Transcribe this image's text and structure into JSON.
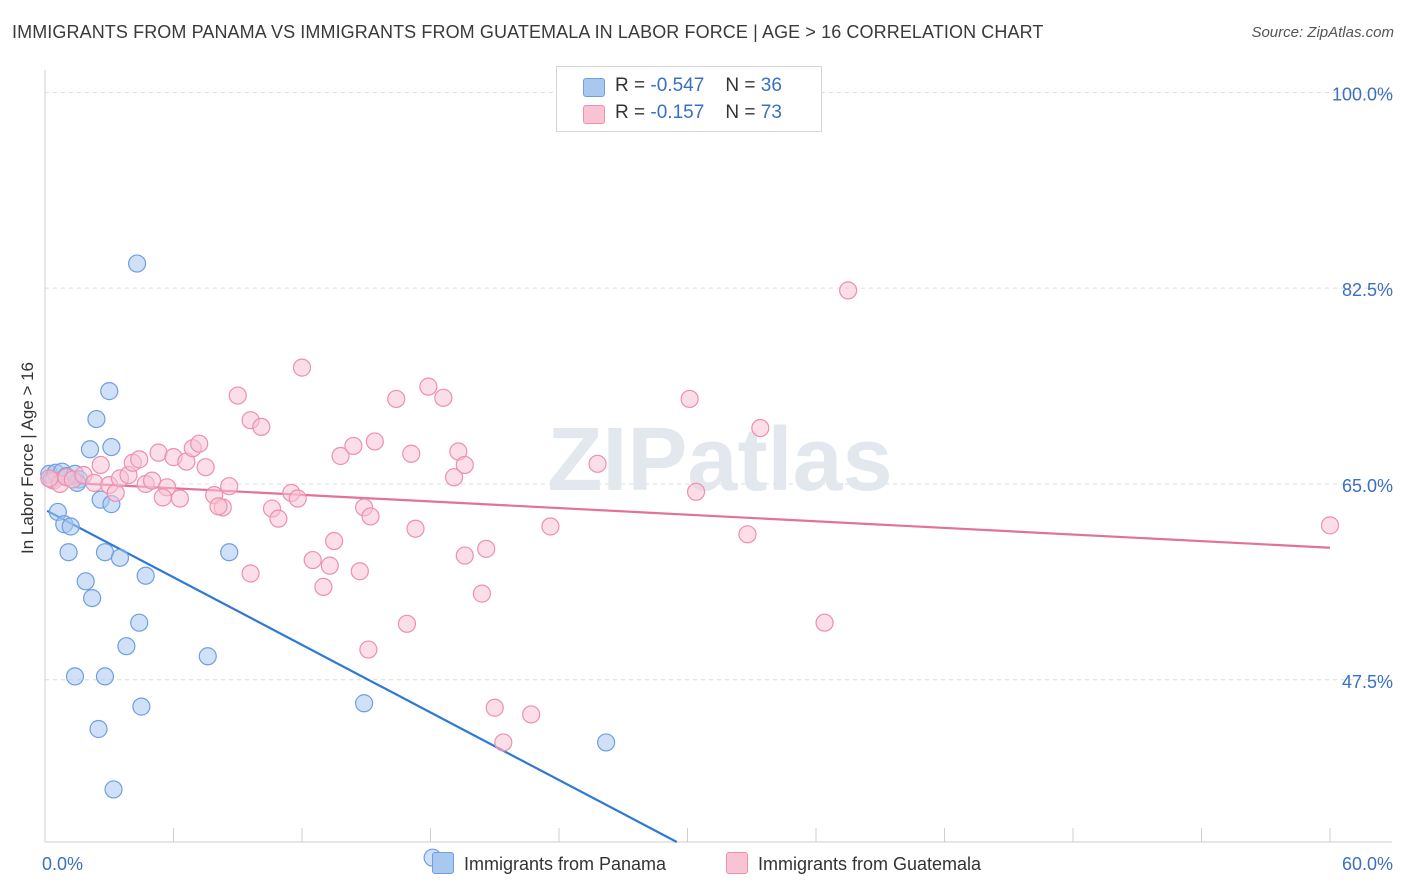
{
  "title": "IMMIGRANTS FROM PANAMA VS IMMIGRANTS FROM GUATEMALA IN LABOR FORCE | AGE > 16 CORRELATION CHART",
  "source": "Source: ZipAtlas.com",
  "legend_top": [
    {
      "r_label": "R =",
      "r_value": "-0.547",
      "n_label": "N =",
      "n_value": "36",
      "color": "#a9c8f0",
      "stroke": "#6f9fe0"
    },
    {
      "r_label": "R =",
      "r_value": "-0.157",
      "n_label": "N =",
      "n_value": "73",
      "color": "#f8c3d3",
      "stroke": "#ee8fae"
    }
  ],
  "legend_bottom": [
    {
      "label": "Immigrants from Panama",
      "color": "#a9c8f0",
      "stroke": "#6f9fe0"
    },
    {
      "label": "Immigrants from Guatemala",
      "color": "#f8c3d3",
      "stroke": "#ee8fae"
    }
  ],
  "chart_data": {
    "type": "scatter",
    "xlabel": "",
    "ylabel": "In Labor Force | Age > 16",
    "xlim": [
      0,
      60
    ],
    "ylim": [
      33,
      102
    ],
    "x_tick_labels": [
      {
        "value": 0,
        "label": "0.0%"
      },
      {
        "value": 60,
        "label": "60.0%"
      }
    ],
    "y_tick_labels": [
      {
        "value": 100,
        "label": "100.0%"
      },
      {
        "value": 82.5,
        "label": "82.5%"
      },
      {
        "value": 65,
        "label": "65.0%"
      },
      {
        "value": 47.5,
        "label": "47.5%"
      }
    ],
    "grid": "horizontal-dashed",
    "watermark": "ZIPatlas",
    "series": [
      {
        "name": "Immigrants from Panama",
        "color": "#6f9fe0",
        "fill": "#a9c8f0",
        "trend": {
          "x": [
            0.1,
            29.5
          ],
          "y": [
            62.6,
            33.0
          ],
          "color": "#2f78d4"
        },
        "points": [
          [
            0.2,
            65.9
          ],
          [
            0.3,
            65.4
          ],
          [
            0.5,
            66.0
          ],
          [
            0.8,
            66.1
          ],
          [
            1.0,
            65.7
          ],
          [
            1.4,
            65.9
          ],
          [
            1.6,
            65.4
          ],
          [
            0.6,
            62.5
          ],
          [
            0.9,
            61.4
          ],
          [
            1.2,
            61.2
          ],
          [
            1.5,
            65.1
          ],
          [
            2.1,
            68.1
          ],
          [
            2.4,
            70.8
          ],
          [
            2.6,
            63.6
          ],
          [
            3.1,
            63.2
          ],
          [
            3.1,
            68.3
          ],
          [
            3.0,
            73.3
          ],
          [
            4.3,
            84.7
          ],
          [
            1.1,
            58.9
          ],
          [
            1.9,
            56.3
          ],
          [
            2.2,
            54.8
          ],
          [
            2.8,
            58.9
          ],
          [
            3.5,
            58.4
          ],
          [
            4.7,
            56.8
          ],
          [
            4.4,
            52.6
          ],
          [
            3.8,
            50.5
          ],
          [
            7.6,
            49.6
          ],
          [
            8.6,
            58.9
          ],
          [
            1.4,
            47.8
          ],
          [
            2.8,
            47.8
          ],
          [
            4.5,
            45.1
          ],
          [
            2.5,
            43.1
          ],
          [
            3.2,
            37.7
          ],
          [
            14.9,
            45.4
          ],
          [
            26.2,
            41.9
          ],
          [
            18.1,
            31.6
          ]
        ]
      },
      {
        "name": "Immigrants from Guatemala",
        "color": "#ee8fae",
        "fill": "#f8c3d3",
        "trend": {
          "x": [
            0.1,
            60.0
          ],
          "y": [
            65.2,
            59.3
          ],
          "color": "#e2729a"
        },
        "points": [
          [
            0.4,
            65.3
          ],
          [
            0.7,
            65.0
          ],
          [
            1.0,
            65.6
          ],
          [
            1.3,
            65.4
          ],
          [
            1.8,
            65.8
          ],
          [
            2.3,
            65.1
          ],
          [
            2.6,
            66.7
          ],
          [
            3.0,
            64.9
          ],
          [
            3.3,
            64.2
          ],
          [
            3.5,
            65.5
          ],
          [
            3.9,
            65.8
          ],
          [
            4.1,
            66.9
          ],
          [
            4.4,
            67.2
          ],
          [
            4.7,
            65.0
          ],
          [
            5.0,
            65.3
          ],
          [
            5.3,
            67.8
          ],
          [
            5.7,
            64.7
          ],
          [
            6.0,
            67.4
          ],
          [
            6.3,
            63.7
          ],
          [
            6.6,
            67.0
          ],
          [
            6.9,
            68.2
          ],
          [
            7.2,
            68.6
          ],
          [
            7.5,
            66.5
          ],
          [
            7.9,
            64.0
          ],
          [
            8.3,
            62.9
          ],
          [
            8.6,
            64.8
          ],
          [
            9.0,
            72.9
          ],
          [
            9.6,
            70.7
          ],
          [
            10.1,
            70.1
          ],
          [
            10.6,
            62.8
          ],
          [
            10.9,
            61.9
          ],
          [
            9.6,
            57.0
          ],
          [
            11.5,
            64.2
          ],
          [
            11.8,
            63.7
          ],
          [
            12.0,
            75.4
          ],
          [
            12.5,
            58.2
          ],
          [
            13.0,
            55.8
          ],
          [
            13.3,
            57.7
          ],
          [
            13.5,
            59.9
          ],
          [
            13.8,
            67.5
          ],
          [
            14.4,
            68.4
          ],
          [
            14.7,
            57.2
          ],
          [
            14.9,
            62.9
          ],
          [
            15.2,
            62.1
          ],
          [
            15.4,
            68.8
          ],
          [
            16.4,
            72.6
          ],
          [
            16.9,
            52.5
          ],
          [
            17.1,
            67.7
          ],
          [
            17.3,
            61.0
          ],
          [
            17.9,
            73.7
          ],
          [
            18.6,
            72.7
          ],
          [
            19.1,
            65.6
          ],
          [
            19.3,
            67.9
          ],
          [
            19.6,
            66.7
          ],
          [
            19.6,
            58.6
          ],
          [
            20.4,
            55.2
          ],
          [
            20.6,
            59.2
          ],
          [
            21.0,
            45.0
          ],
          [
            21.4,
            41.9
          ],
          [
            22.7,
            44.4
          ],
          [
            23.6,
            61.2
          ],
          [
            25.8,
            66.8
          ],
          [
            30.1,
            72.6
          ],
          [
            30.4,
            64.3
          ],
          [
            32.8,
            60.5
          ],
          [
            33.4,
            70.0
          ],
          [
            36.4,
            52.6
          ],
          [
            37.5,
            82.3
          ],
          [
            15.1,
            50.2
          ],
          [
            5.5,
            63.8
          ],
          [
            8.1,
            63.0
          ],
          [
            0.2,
            65.5
          ],
          [
            60.0,
            61.3
          ]
        ]
      }
    ]
  }
}
